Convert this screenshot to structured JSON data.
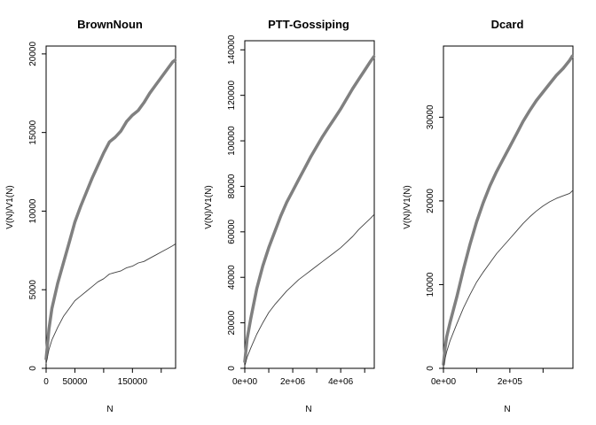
{
  "chart_data": [
    {
      "type": "line",
      "title": "BrownNoun",
      "xlabel": "N",
      "ylabel": "V(N)/V1(N)",
      "xlim": [
        0,
        225000
      ],
      "ylim": [
        0,
        20500
      ],
      "xticks": [
        0,
        50000,
        100000,
        150000,
        200000
      ],
      "xtick_labels": [
        "0",
        "50000",
        "",
        "150000",
        ""
      ],
      "yticks": [
        0,
        5000,
        10000,
        15000,
        20000
      ],
      "ytick_labels": [
        "0",
        "5000",
        "10000",
        "15000",
        "20000"
      ],
      "grid": false,
      "series": [
        {
          "color": "#808080",
          "style": "thick",
          "x": [
            0,
            5000,
            10000,
            20000,
            30000,
            40000,
            50000,
            60000,
            70000,
            80000,
            90000,
            100000,
            110000,
            120000,
            130000,
            140000,
            150000,
            160000,
            170000,
            180000,
            190000,
            200000,
            210000,
            220000,
            224000
          ],
          "y": [
            600,
            2500,
            3800,
            5400,
            6700,
            8000,
            9300,
            10300,
            11200,
            12100,
            12900,
            13700,
            14400,
            14700,
            15100,
            15700,
            16100,
            16400,
            16900,
            17500,
            18000,
            18500,
            19000,
            19500,
            19600
          ]
        },
        {
          "color": "#404040",
          "style": "thin",
          "x": [
            0,
            5000,
            10000,
            20000,
            30000,
            40000,
            50000,
            60000,
            70000,
            80000,
            90000,
            100000,
            110000,
            120000,
            130000,
            140000,
            150000,
            160000,
            170000,
            180000,
            190000,
            200000,
            210000,
            220000,
            224000
          ],
          "y": [
            300,
            1200,
            1800,
            2600,
            3300,
            3800,
            4300,
            4600,
            4900,
            5200,
            5500,
            5700,
            6000,
            6100,
            6200,
            6400,
            6500,
            6700,
            6800,
            7000,
            7200,
            7400,
            7600,
            7800,
            7900
          ]
        }
      ]
    },
    {
      "type": "line",
      "title": "PTT-Gossiping",
      "xlabel": "N",
      "ylabel": "V(N)/V1(N)",
      "xlim": [
        0,
        5400000
      ],
      "ylim": [
        0,
        144000
      ],
      "xticks": [
        0,
        1000000,
        2000000,
        3000000,
        4000000,
        5000000
      ],
      "xtick_labels": [
        "0e+00",
        "",
        "2e+06",
        "",
        "4e+06",
        ""
      ],
      "yticks": [
        0,
        20000,
        40000,
        60000,
        80000,
        100000,
        120000,
        140000
      ],
      "ytick_labels": [
        "0",
        "20000",
        "40000",
        "60000",
        "80000",
        "100000",
        "120000",
        "140000"
      ],
      "grid": false,
      "series": [
        {
          "color": "#808080",
          "style": "thick",
          "x": [
            0,
            100000,
            250000,
            500000,
            750000,
            1000000,
            1250000,
            1500000,
            1750000,
            2000000,
            2250000,
            2500000,
            2750000,
            3000000,
            3250000,
            3500000,
            3750000,
            4000000,
            4250000,
            4500000,
            4750000,
            5000000,
            5250000,
            5380000
          ],
          "y": [
            3000,
            13000,
            22000,
            35000,
            45000,
            53000,
            60000,
            67000,
            73000,
            78000,
            83000,
            88000,
            93000,
            97500,
            102000,
            106000,
            110000,
            114000,
            118500,
            123000,
            127000,
            131000,
            135000,
            137000
          ]
        },
        {
          "color": "#404040",
          "style": "thin",
          "x": [
            0,
            100000,
            250000,
            500000,
            750000,
            1000000,
            1250000,
            1500000,
            1750000,
            2000000,
            2250000,
            2500000,
            2750000,
            3000000,
            3250000,
            3500000,
            3750000,
            4000000,
            4250000,
            4500000,
            4750000,
            5000000,
            5250000,
            5380000
          ],
          "y": [
            1000,
            5000,
            9000,
            15000,
            20000,
            24500,
            28000,
            31000,
            34000,
            36500,
            39000,
            41000,
            43000,
            45000,
            47000,
            49000,
            51000,
            53000,
            55500,
            58000,
            61000,
            63500,
            66000,
            67500
          ]
        }
      ]
    },
    {
      "type": "line",
      "title": "Dcard",
      "xlabel": "N",
      "ylabel": "V(N)/V1(N)",
      "xlim": [
        0,
        390000
      ],
      "ylim": [
        0,
        38500
      ],
      "xticks": [
        0,
        100000,
        200000,
        300000
      ],
      "xtick_labels": [
        "0e+00",
        "",
        "2e+05",
        ""
      ],
      "yticks": [
        0,
        10000,
        20000,
        30000
      ],
      "ytick_labels": [
        "0",
        "10000",
        "20000",
        "30000"
      ],
      "grid": false,
      "series": [
        {
          "color": "#808080",
          "style": "thick",
          "x": [
            0,
            5000,
            10000,
            20000,
            40000,
            60000,
            80000,
            100000,
            120000,
            140000,
            160000,
            180000,
            200000,
            220000,
            240000,
            260000,
            280000,
            300000,
            320000,
            340000,
            360000,
            380000,
            388000
          ],
          "y": [
            500,
            2500,
            3800,
            5500,
            8500,
            11800,
            14800,
            17500,
            19800,
            21800,
            23500,
            25000,
            26500,
            28000,
            29500,
            30800,
            32000,
            33000,
            34000,
            35000,
            35800,
            36800,
            37300
          ]
        },
        {
          "color": "#404040",
          "style": "thin",
          "x": [
            0,
            5000,
            10000,
            20000,
            40000,
            60000,
            80000,
            100000,
            120000,
            140000,
            160000,
            180000,
            200000,
            220000,
            240000,
            260000,
            280000,
            300000,
            320000,
            340000,
            360000,
            380000,
            388000
          ],
          "y": [
            300,
            1200,
            2000,
            3300,
            5300,
            7200,
            8800,
            10300,
            11500,
            12600,
            13700,
            14600,
            15500,
            16400,
            17300,
            18100,
            18800,
            19400,
            19900,
            20300,
            20600,
            20900,
            21200
          ]
        }
      ]
    }
  ]
}
